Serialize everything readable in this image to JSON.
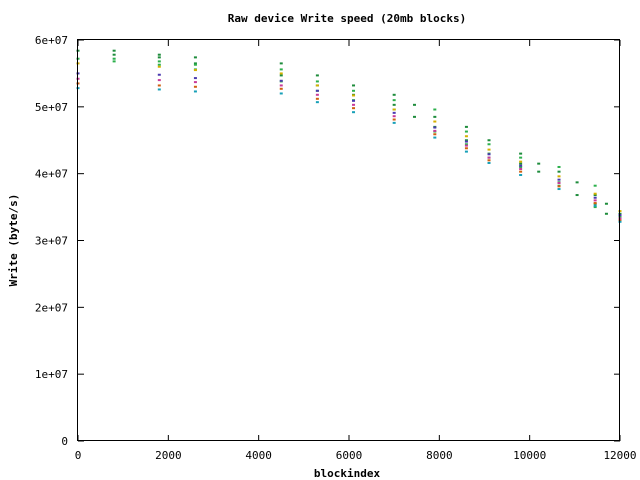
{
  "chart_data": {
    "type": "scatter",
    "title": "Raw device Write speed (20mb blocks)",
    "xlabel": "blockindex",
    "ylabel": "Write (byte/s)",
    "xlim": [
      0,
      12000
    ],
    "ylim": [
      0,
      60000000
    ],
    "x_ticks": [
      {
        "value": 0,
        "label": "0"
      },
      {
        "value": 2000,
        "label": "2000"
      },
      {
        "value": 4000,
        "label": "4000"
      },
      {
        "value": 6000,
        "label": "6000"
      },
      {
        "value": 8000,
        "label": "8000"
      },
      {
        "value": 10000,
        "label": "10000"
      },
      {
        "value": 12000,
        "label": "12000"
      }
    ],
    "y_ticks": [
      {
        "value": 0,
        "label": "0"
      },
      {
        "value": 10000000,
        "label": "1e+07"
      },
      {
        "value": 20000000,
        "label": "2e+07"
      },
      {
        "value": 30000000,
        "label": "3e+07"
      },
      {
        "value": 40000000,
        "label": "4e+07"
      },
      {
        "value": 50000000,
        "label": "5e+07"
      },
      {
        "value": 60000000,
        "label": "6e+07"
      }
    ],
    "grid": false,
    "legend": "none",
    "marker": "dot",
    "series": [
      {
        "color": "#1e8c3c",
        "points": [
          [
            0,
            58400000
          ],
          [
            800,
            58400000
          ],
          [
            800,
            57800000
          ],
          [
            1800,
            57800000
          ],
          [
            1800,
            57400000
          ],
          [
            2600,
            57400000
          ],
          [
            2600,
            56500000
          ],
          [
            4500,
            56500000
          ],
          [
            4500,
            54700000
          ],
          [
            5300,
            54700000
          ],
          [
            5300,
            53200000
          ],
          [
            6100,
            53200000
          ],
          [
            6100,
            51800000
          ],
          [
            7000,
            51800000
          ],
          [
            7000,
            50300000
          ],
          [
            7450,
            50300000
          ],
          [
            7450,
            48500000
          ],
          [
            7900,
            48500000
          ],
          [
            7900,
            47000000
          ],
          [
            8600,
            47000000
          ],
          [
            8600,
            45000000
          ],
          [
            9100,
            45000000
          ],
          [
            9100,
            43000000
          ],
          [
            9800,
            43000000
          ],
          [
            9800,
            41500000
          ],
          [
            10200,
            41500000
          ],
          [
            10200,
            40300000
          ],
          [
            10650,
            40300000
          ],
          [
            10650,
            38700000
          ],
          [
            11050,
            38700000
          ],
          [
            11050,
            36800000
          ],
          [
            11450,
            36800000
          ],
          [
            11450,
            35500000
          ],
          [
            11700,
            35500000
          ],
          [
            11700,
            34000000
          ],
          [
            12000,
            34000000
          ]
        ]
      },
      {
        "color": "#2cb04c",
        "points": [
          [
            0,
            57200000
          ],
          [
            800,
            57200000
          ],
          [
            800,
            56800000
          ],
          [
            1800,
            56800000
          ],
          [
            1800,
            56300000
          ],
          [
            2600,
            56300000
          ],
          [
            2600,
            55600000
          ],
          [
            4500,
            55600000
          ],
          [
            4500,
            53800000
          ],
          [
            5300,
            53800000
          ],
          [
            5300,
            52400000
          ],
          [
            6100,
            52400000
          ],
          [
            6100,
            51000000
          ],
          [
            7000,
            51000000
          ],
          [
            7000,
            49600000
          ],
          [
            7900,
            49600000
          ],
          [
            7900,
            46300000
          ],
          [
            8600,
            46300000
          ],
          [
            8600,
            44400000
          ],
          [
            9100,
            44400000
          ],
          [
            9100,
            42400000
          ],
          [
            9800,
            42400000
          ],
          [
            9800,
            41000000
          ],
          [
            10650,
            41000000
          ],
          [
            10650,
            38200000
          ],
          [
            11450,
            38200000
          ],
          [
            11450,
            35000000
          ],
          [
            12000,
            33600000
          ]
        ]
      },
      {
        "color": "#d4b000",
        "points": [
          [
            0,
            56500000
          ],
          [
            1800,
            56000000
          ],
          [
            2600,
            55500000
          ],
          [
            4500,
            55000000
          ],
          [
            5300,
            53200000
          ],
          [
            6100,
            51700000
          ],
          [
            7000,
            49600000
          ],
          [
            7900,
            47800000
          ],
          [
            8600,
            45600000
          ],
          [
            9100,
            43600000
          ],
          [
            9800,
            41800000
          ],
          [
            10650,
            39600000
          ],
          [
            11450,
            37000000
          ],
          [
            12000,
            34400000
          ]
        ]
      },
      {
        "color": "#4a3ab0",
        "points": [
          [
            0,
            55000000
          ],
          [
            1800,
            54800000
          ],
          [
            2600,
            54300000
          ],
          [
            4500,
            53900000
          ],
          [
            5300,
            52400000
          ],
          [
            6100,
            50900000
          ],
          [
            7000,
            49100000
          ],
          [
            7900,
            46900000
          ],
          [
            8600,
            44800000
          ],
          [
            9100,
            42900000
          ],
          [
            9800,
            41200000
          ],
          [
            10650,
            39100000
          ],
          [
            11450,
            36400000
          ],
          [
            12000,
            33800000
          ]
        ]
      },
      {
        "color": "#c83a9a",
        "points": [
          [
            0,
            54200000
          ],
          [
            1800,
            54000000
          ],
          [
            2600,
            53700000
          ],
          [
            4500,
            53200000
          ],
          [
            5300,
            51800000
          ],
          [
            6100,
            50300000
          ],
          [
            7000,
            48600000
          ],
          [
            7900,
            46400000
          ],
          [
            8600,
            44200000
          ],
          [
            9100,
            42400000
          ],
          [
            9800,
            40700000
          ],
          [
            10650,
            38600000
          ],
          [
            11450,
            36000000
          ],
          [
            12000,
            33300000
          ]
        ]
      },
      {
        "color": "#d06010",
        "points": [
          [
            0,
            53500000
          ],
          [
            1800,
            53200000
          ],
          [
            2600,
            53000000
          ],
          [
            4500,
            52700000
          ],
          [
            5300,
            51200000
          ],
          [
            6100,
            49800000
          ],
          [
            7000,
            48100000
          ],
          [
            7900,
            45900000
          ],
          [
            8600,
            43800000
          ],
          [
            9100,
            42000000
          ],
          [
            9800,
            40300000
          ],
          [
            10650,
            38100000
          ],
          [
            11450,
            35600000
          ],
          [
            12000,
            33000000
          ]
        ]
      },
      {
        "color": "#18a0b8",
        "points": [
          [
            0,
            52800000
          ],
          [
            1800,
            52600000
          ],
          [
            2600,
            52300000
          ],
          [
            4500,
            52000000
          ],
          [
            5300,
            50700000
          ],
          [
            6100,
            49200000
          ],
          [
            7000,
            47600000
          ],
          [
            7900,
            45400000
          ],
          [
            8600,
            43300000
          ],
          [
            9100,
            41600000
          ],
          [
            9800,
            39800000
          ],
          [
            10650,
            37700000
          ],
          [
            11450,
            35200000
          ],
          [
            12000,
            32800000
          ]
        ]
      }
    ]
  }
}
